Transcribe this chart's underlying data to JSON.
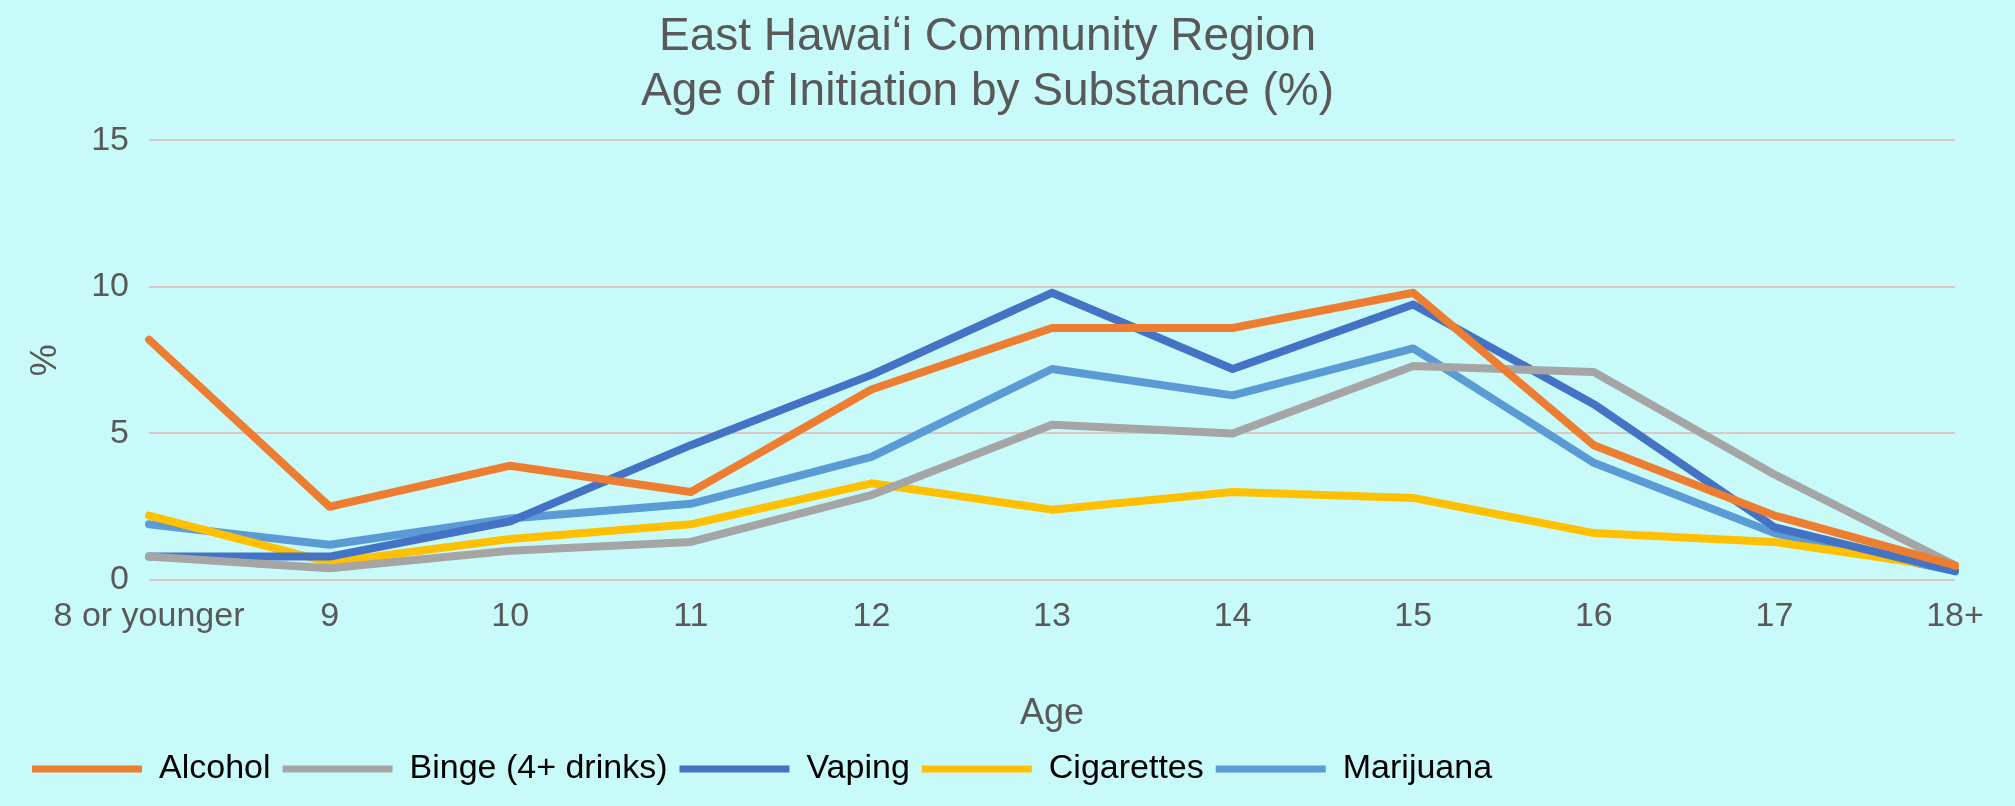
{
  "chart_data": {
    "type": "line",
    "title": "East Hawaiʻi Community Region\nAge of Initiation by Substance (%)",
    "xlabel": "Age",
    "ylabel": "%",
    "categories": [
      "8 or younger",
      "9",
      "10",
      "11",
      "12",
      "13",
      "14",
      "15",
      "16",
      "17",
      "18+"
    ],
    "series": [
      {
        "name": "Alcohol",
        "color": "#ed7d31",
        "values": [
          8.2,
          2.5,
          3.9,
          3.0,
          6.5,
          8.6,
          8.6,
          9.8,
          4.6,
          2.2,
          0.5
        ]
      },
      {
        "name": "Binge (4+ drinks)",
        "color": "#a5a5a5",
        "values": [
          0.8,
          0.4,
          1.0,
          1.3,
          2.9,
          5.3,
          5.0,
          7.3,
          7.1,
          3.6,
          0.5
        ]
      },
      {
        "name": "Vaping",
        "color": "#4472c4",
        "values": [
          0.8,
          0.8,
          2.0,
          4.6,
          7.0,
          9.8,
          7.2,
          9.4,
          6.0,
          1.8,
          0.3
        ]
      },
      {
        "name": "Cigarettes",
        "color": "#ffc000",
        "values": [
          2.2,
          0.6,
          1.4,
          1.9,
          3.3,
          2.4,
          3.0,
          2.8,
          1.6,
          1.3,
          0.4
        ]
      },
      {
        "name": "Marijuana",
        "color": "#5b9bd5",
        "values": [
          1.9,
          1.2,
          2.1,
          2.6,
          4.2,
          7.2,
          6.3,
          7.9,
          4.0,
          1.6,
          0.3
        ]
      }
    ],
    "ylim": [
      0,
      15
    ],
    "yticks": [
      0,
      5,
      10,
      15
    ],
    "grid": "y",
    "legend": "bottom",
    "marker": "none",
    "line_style": "solid"
  }
}
